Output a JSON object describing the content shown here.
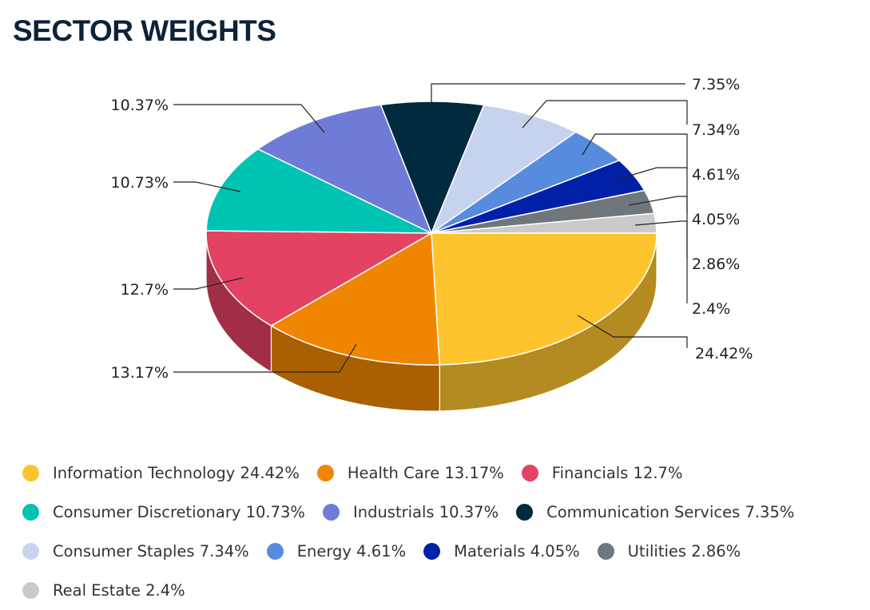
{
  "title": "SECTOR WEIGHTS",
  "chart_data": {
    "type": "pie",
    "title": "SECTOR WEIGHTS",
    "legend_position": "bottom",
    "slices": [
      {
        "name": "Information Technology",
        "value": 24.42,
        "label": "24.42%",
        "legend": "Information Technology 24.42%",
        "color": "#fec42d",
        "side_color": "#b48b20"
      },
      {
        "name": "Health Care",
        "value": 13.17,
        "label": "13.17%",
        "legend": "Health Care 13.17%",
        "color": "#f08600",
        "side_color": "#aa5f00"
      },
      {
        "name": "Financials",
        "value": 12.7,
        "label": "12.7%",
        "legend": "Financials 12.7%",
        "color": "#e34263",
        "side_color": "#a12e46"
      },
      {
        "name": "Consumer Discretionary",
        "value": 10.73,
        "label": "10.73%",
        "legend": "Consumer Discretionary 10.73%",
        "color": "#00c4b3",
        "side_color": "#008b7f"
      },
      {
        "name": "Industrials",
        "value": 10.37,
        "label": "10.37%",
        "legend": "Industrials 10.37%",
        "color": "#6e7bd7",
        "side_color": "#4e5799"
      },
      {
        "name": "Communication Services",
        "value": 7.35,
        "label": "7.35%",
        "legend": "Communication Services 7.35%",
        "color": "#002a3e",
        "side_color": "#001d2c"
      },
      {
        "name": "Consumer Staples",
        "value": 7.34,
        "label": "7.34%",
        "legend": "Consumer Staples 7.34%",
        "color": "#c7d3ee",
        "side_color": "#8d96a9"
      },
      {
        "name": "Energy",
        "value": 4.61,
        "label": "4.61%",
        "legend": "Energy 4.61%",
        "color": "#578bdd",
        "side_color": "#3e639d"
      },
      {
        "name": "Materials",
        "value": 4.05,
        "label": "4.05%",
        "legend": "Materials 4.05%",
        "color": "#0020a8",
        "side_color": "#001777"
      },
      {
        "name": "Utilities",
        "value": 2.86,
        "label": "2.86%",
        "legend": "Utilities 2.86%",
        "color": "#6f767c",
        "side_color": "#4f5458"
      },
      {
        "name": "Real Estate",
        "value": 2.4,
        "label": "2.4%",
        "legend": "Real Estate 2.4%",
        "color": "#c9cacb",
        "side_color": "#8f9090"
      }
    ]
  }
}
